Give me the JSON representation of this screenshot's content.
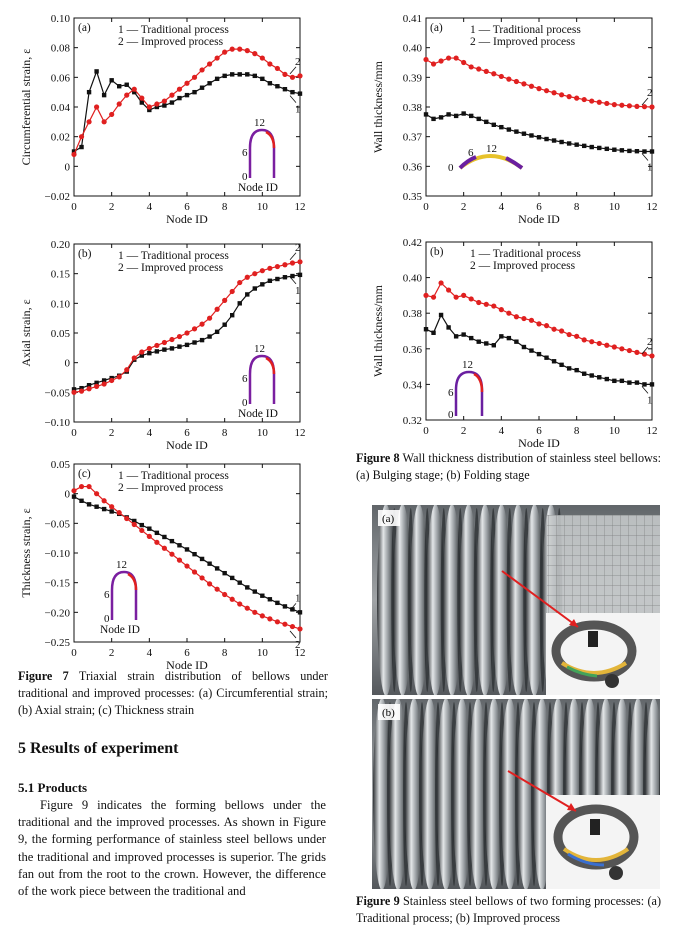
{
  "figure7": {
    "label": "Figure 7",
    "caption": "Triaxial strain distribution of bellows under traditional and improved processes: (a) Circumferential strain; (b) Axial strain; (c) Thickness strain"
  },
  "figure8": {
    "label": "Figure 8",
    "caption": "Wall thickness distribution of stainless steel bellows: (a) Bulging stage; (b) Folding stage"
  },
  "figure9": {
    "label": "Figure 9",
    "caption": "Stainless steel bellows of two forming processes: (a) Traditional process; (b) Improved process",
    "panel_a_label": "(a)",
    "panel_b_label": "(b)"
  },
  "section": {
    "title": "5 Results of experiment",
    "subtitle": "5.1 Products",
    "paragraph": "Figure 9 indicates the forming bellows under the traditional and the improved processes. As shown in Figure 9, the forming performance of stainless steel bellows under the traditional and improved processes is superior. The grids fan out from the root to the crown. However, the difference of the work piece between the traditional and"
  },
  "colors": {
    "series1": "#111111",
    "series2": "#e02020"
  },
  "chart_data": [
    {
      "id": "fig7a",
      "type": "line",
      "panel": "(a)",
      "xlabel": "Node ID",
      "ylabel": "Circumferential strain, ε",
      "xlim": [
        0,
        12
      ],
      "ylim": [
        -0.02,
        0.1
      ],
      "xticks": [
        "0",
        "2",
        "4",
        "6",
        "8",
        "10",
        "12"
      ],
      "yticks": [
        "−0.02",
        "0",
        "0.02",
        "0.04",
        "0.06",
        "0.08",
        "0.10"
      ],
      "yvals": [
        -0.02,
        0,
        0.02,
        0.04,
        0.06,
        0.08,
        0.1
      ],
      "legend": [
        "1 — Traditional process",
        "2 — Improved process"
      ],
      "inset_labels": [
        "0",
        "6",
        "12",
        "Node ID"
      ],
      "series": [
        {
          "label": "1",
          "x": [
            0,
            0.4,
            0.8,
            1.2,
            1.6,
            2.0,
            2.4,
            2.8,
            3.2,
            3.6,
            4.0,
            4.4,
            4.8,
            5.2,
            5.6,
            6.0,
            6.4,
            6.8,
            7.2,
            7.6,
            8.0,
            8.4,
            8.8,
            9.2,
            9.6,
            10.0,
            10.4,
            10.8,
            11.2,
            11.6,
            12.0
          ],
          "y": [
            0.01,
            0.013,
            0.05,
            0.064,
            0.048,
            0.058,
            0.054,
            0.055,
            0.05,
            0.043,
            0.038,
            0.04,
            0.041,
            0.043,
            0.046,
            0.048,
            0.05,
            0.053,
            0.056,
            0.059,
            0.061,
            0.062,
            0.062,
            0.062,
            0.061,
            0.059,
            0.056,
            0.054,
            0.052,
            0.05,
            0.049
          ]
        },
        {
          "label": "2",
          "x": [
            0,
            0.4,
            0.8,
            1.2,
            1.6,
            2.0,
            2.4,
            2.8,
            3.2,
            3.6,
            4.0,
            4.4,
            4.8,
            5.2,
            5.6,
            6.0,
            6.4,
            6.8,
            7.2,
            7.6,
            8.0,
            8.4,
            8.8,
            9.2,
            9.6,
            10.0,
            10.4,
            10.8,
            11.2,
            11.6,
            12.0
          ],
          "y": [
            0.008,
            0.02,
            0.03,
            0.04,
            0.03,
            0.035,
            0.042,
            0.048,
            0.052,
            0.046,
            0.04,
            0.042,
            0.044,
            0.048,
            0.052,
            0.056,
            0.06,
            0.065,
            0.069,
            0.073,
            0.077,
            0.079,
            0.079,
            0.078,
            0.076,
            0.073,
            0.069,
            0.066,
            0.062,
            0.06,
            0.061
          ]
        }
      ]
    },
    {
      "id": "fig7b",
      "type": "line",
      "panel": "(b)",
      "xlabel": "Node ID",
      "ylabel": "Axial strain, ε",
      "xlim": [
        0,
        12
      ],
      "ylim": [
        -0.1,
        0.2
      ],
      "xticks": [
        "0",
        "2",
        "4",
        "6",
        "8",
        "10",
        "12"
      ],
      "yticks": [
        "−0.10",
        "−0.05",
        "0",
        "0.05",
        "0.10",
        "0.15",
        "0.20"
      ],
      "yvals": [
        -0.1,
        -0.05,
        0,
        0.05,
        0.1,
        0.15,
        0.2
      ],
      "legend": [
        "1 — Traditional process",
        "2 — Improved process"
      ],
      "inset_labels": [
        "0",
        "6",
        "12",
        "Node ID"
      ],
      "series": [
        {
          "label": "1",
          "x": [
            0,
            0.4,
            0.8,
            1.2,
            1.6,
            2.0,
            2.4,
            2.8,
            3.2,
            3.6,
            4.0,
            4.4,
            4.8,
            5.2,
            5.6,
            6.0,
            6.4,
            6.8,
            7.2,
            7.6,
            8.0,
            8.4,
            8.8,
            9.2,
            9.6,
            10.0,
            10.4,
            10.8,
            11.2,
            11.6,
            12.0
          ],
          "y": [
            -0.045,
            -0.043,
            -0.038,
            -0.034,
            -0.03,
            -0.026,
            -0.022,
            -0.015,
            0.005,
            0.012,
            0.016,
            0.019,
            0.022,
            0.024,
            0.027,
            0.03,
            0.034,
            0.038,
            0.044,
            0.052,
            0.064,
            0.08,
            0.1,
            0.115,
            0.125,
            0.132,
            0.138,
            0.141,
            0.144,
            0.146,
            0.148
          ]
        },
        {
          "label": "2",
          "x": [
            0,
            0.4,
            0.8,
            1.2,
            1.6,
            2.0,
            2.4,
            2.8,
            3.2,
            3.6,
            4.0,
            4.4,
            4.8,
            5.2,
            5.6,
            6.0,
            6.4,
            6.8,
            7.2,
            7.6,
            8.0,
            8.4,
            8.8,
            9.2,
            9.6,
            10.0,
            10.4,
            10.8,
            11.2,
            11.6,
            12.0
          ],
          "y": [
            -0.05,
            -0.048,
            -0.044,
            -0.04,
            -0.036,
            -0.03,
            -0.024,
            -0.012,
            0.008,
            0.018,
            0.024,
            0.029,
            0.034,
            0.039,
            0.044,
            0.05,
            0.057,
            0.065,
            0.075,
            0.09,
            0.105,
            0.12,
            0.135,
            0.144,
            0.15,
            0.155,
            0.159,
            0.162,
            0.165,
            0.168,
            0.17
          ]
        }
      ]
    },
    {
      "id": "fig7c",
      "type": "line",
      "panel": "(c)",
      "xlabel": "Node ID",
      "ylabel": "Thickness strain, ε",
      "xlim": [
        0,
        12
      ],
      "ylim": [
        -0.25,
        0.05
      ],
      "xticks": [
        "0",
        "2",
        "4",
        "6",
        "8",
        "10",
        "12"
      ],
      "yticks": [
        "−0.25",
        "−0.20",
        "−0.15",
        "−0.10",
        "−0.05",
        "0",
        "0.05"
      ],
      "yvals": [
        -0.25,
        -0.2,
        -0.15,
        -0.1,
        -0.05,
        0,
        0.05
      ],
      "legend": [
        "1 — Traditional process",
        "2 — Improved process"
      ],
      "inset_labels": [
        "0",
        "6",
        "12",
        "Node ID"
      ],
      "series": [
        {
          "label": "1",
          "x": [
            0,
            0.4,
            0.8,
            1.2,
            1.6,
            2.0,
            2.4,
            2.8,
            3.2,
            3.6,
            4.0,
            4.4,
            4.8,
            5.2,
            5.6,
            6.0,
            6.4,
            6.8,
            7.2,
            7.6,
            8.0,
            8.4,
            8.8,
            9.2,
            9.6,
            10.0,
            10.4,
            10.8,
            11.2,
            11.6,
            12.0
          ],
          "y": [
            -0.005,
            -0.012,
            -0.018,
            -0.022,
            -0.026,
            -0.03,
            -0.034,
            -0.04,
            -0.046,
            -0.053,
            -0.059,
            -0.066,
            -0.073,
            -0.08,
            -0.087,
            -0.094,
            -0.102,
            -0.11,
            -0.118,
            -0.126,
            -0.134,
            -0.142,
            -0.15,
            -0.158,
            -0.165,
            -0.172,
            -0.178,
            -0.184,
            -0.19,
            -0.195,
            -0.2
          ]
        },
        {
          "label": "2",
          "x": [
            0,
            0.4,
            0.8,
            1.2,
            1.6,
            2.0,
            2.4,
            2.8,
            3.2,
            3.6,
            4.0,
            4.4,
            4.8,
            5.2,
            5.6,
            6.0,
            6.4,
            6.8,
            7.2,
            7.6,
            8.0,
            8.4,
            8.8,
            9.2,
            9.6,
            10.0,
            10.4,
            10.8,
            11.2,
            11.6,
            12.0
          ],
          "y": [
            0.005,
            0.012,
            0.012,
            0.0,
            -0.012,
            -0.022,
            -0.032,
            -0.042,
            -0.052,
            -0.062,
            -0.072,
            -0.082,
            -0.092,
            -0.102,
            -0.112,
            -0.122,
            -0.132,
            -0.142,
            -0.152,
            -0.161,
            -0.17,
            -0.178,
            -0.186,
            -0.193,
            -0.2,
            -0.206,
            -0.211,
            -0.216,
            -0.22,
            -0.224,
            -0.228
          ]
        }
      ]
    },
    {
      "id": "fig8a",
      "type": "line",
      "panel": "(a)",
      "xlabel": "Node ID",
      "ylabel": "Wall thickness/mm",
      "xlim": [
        0,
        12
      ],
      "ylim": [
        0.35,
        0.41
      ],
      "xticks": [
        "0",
        "2",
        "4",
        "6",
        "8",
        "10",
        "12"
      ],
      "yticks": [
        "0.35",
        "0.36",
        "0.37",
        "0.38",
        "0.39",
        "0.40",
        "0.41"
      ],
      "yvals": [
        0.35,
        0.36,
        0.37,
        0.38,
        0.39,
        0.4,
        0.41
      ],
      "legend": [
        "1 — Traditional process",
        "2 — Improved process"
      ],
      "inset_labels": [
        "0",
        "6",
        "12"
      ],
      "series": [
        {
          "label": "1",
          "x": [
            0,
            0.4,
            0.8,
            1.2,
            1.6,
            2.0,
            2.4,
            2.8,
            3.2,
            3.6,
            4.0,
            4.4,
            4.8,
            5.2,
            5.6,
            6.0,
            6.4,
            6.8,
            7.2,
            7.6,
            8.0,
            8.4,
            8.8,
            9.2,
            9.6,
            10.0,
            10.4,
            10.8,
            11.2,
            11.6,
            12.0
          ],
          "y": [
            0.3775,
            0.376,
            0.3765,
            0.3775,
            0.377,
            0.3778,
            0.377,
            0.376,
            0.375,
            0.374,
            0.3732,
            0.3724,
            0.3717,
            0.371,
            0.3704,
            0.3698,
            0.3692,
            0.3687,
            0.3682,
            0.3677,
            0.3673,
            0.3669,
            0.3665,
            0.3662,
            0.3659,
            0.3656,
            0.3654,
            0.3652,
            0.3651,
            0.365,
            0.365
          ]
        },
        {
          "label": "2",
          "x": [
            0,
            0.4,
            0.8,
            1.2,
            1.6,
            2.0,
            2.4,
            2.8,
            3.2,
            3.6,
            4.0,
            4.4,
            4.8,
            5.2,
            5.6,
            6.0,
            6.4,
            6.8,
            7.2,
            7.6,
            8.0,
            8.4,
            8.8,
            9.2,
            9.6,
            10.0,
            10.4,
            10.8,
            11.2,
            11.6,
            12.0
          ],
          "y": [
            0.396,
            0.3945,
            0.3955,
            0.3965,
            0.3965,
            0.395,
            0.3935,
            0.3928,
            0.392,
            0.3912,
            0.3903,
            0.3894,
            0.3886,
            0.3878,
            0.387,
            0.3862,
            0.3855,
            0.3848,
            0.3841,
            0.3835,
            0.383,
            0.3825,
            0.382,
            0.3816,
            0.3812,
            0.3808,
            0.3806,
            0.3804,
            0.3802,
            0.3801,
            0.38
          ]
        }
      ]
    },
    {
      "id": "fig8b",
      "type": "line",
      "panel": "(b)",
      "xlabel": "Node ID",
      "ylabel": "Wall thickness/mm",
      "xlim": [
        0,
        12
      ],
      "ylim": [
        0.32,
        0.42
      ],
      "xticks": [
        "0",
        "2",
        "4",
        "6",
        "8",
        "10",
        "12"
      ],
      "yticks": [
        "0.32",
        "0.34",
        "0.36",
        "0.38",
        "0.40",
        "0.42"
      ],
      "yvals": [
        0.32,
        0.34,
        0.36,
        0.38,
        0.4,
        0.42
      ],
      "legend": [
        "1 — Traditional process",
        "2 — Improved process"
      ],
      "inset_labels": [
        "0",
        "6",
        "12"
      ],
      "series": [
        {
          "label": "2",
          "x": [
            0,
            0.4,
            0.8,
            1.2,
            1.6,
            2.0,
            2.4,
            2.8,
            3.2,
            3.6,
            4.0,
            4.4,
            4.8,
            5.2,
            5.6,
            6.0,
            6.4,
            6.8,
            7.2,
            7.6,
            8.0,
            8.4,
            8.8,
            9.2,
            9.6,
            10.0,
            10.4,
            10.8,
            11.2,
            11.6,
            12.0
          ],
          "y": [
            0.39,
            0.389,
            0.397,
            0.393,
            0.389,
            0.39,
            0.388,
            0.386,
            0.385,
            0.384,
            0.382,
            0.38,
            0.378,
            0.377,
            0.376,
            0.374,
            0.373,
            0.371,
            0.37,
            0.368,
            0.367,
            0.365,
            0.364,
            0.363,
            0.362,
            0.361,
            0.36,
            0.359,
            0.358,
            0.357,
            0.356
          ]
        },
        {
          "label": "1",
          "x": [
            0,
            0.4,
            0.8,
            1.2,
            1.6,
            2.0,
            2.4,
            2.8,
            3.2,
            3.6,
            4.0,
            4.4,
            4.8,
            5.2,
            5.6,
            6.0,
            6.4,
            6.8,
            7.2,
            7.6,
            8.0,
            8.4,
            8.8,
            9.2,
            9.6,
            10.0,
            10.4,
            10.8,
            11.2,
            11.6,
            12.0
          ],
          "y": [
            0.371,
            0.369,
            0.379,
            0.372,
            0.367,
            0.368,
            0.366,
            0.364,
            0.363,
            0.362,
            0.367,
            0.366,
            0.364,
            0.361,
            0.359,
            0.357,
            0.355,
            0.353,
            0.351,
            0.349,
            0.348,
            0.346,
            0.345,
            0.344,
            0.343,
            0.342,
            0.342,
            0.341,
            0.341,
            0.34,
            0.34
          ]
        }
      ]
    }
  ]
}
